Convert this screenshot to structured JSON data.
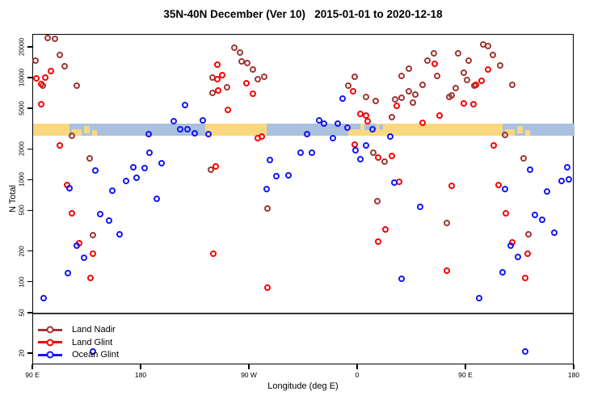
{
  "title": "35N-40N December (Ver 10)   2015-01-01 to 2020-12-18",
  "chart_data": {
    "type": "scatter",
    "title": "35N-40N December (Ver 10)   2015-01-01 to 2020-12-18",
    "xlabel": "Longitude (deg E)",
    "ylabel": "N Total",
    "x_axis": {
      "range": [
        90,
        540
      ],
      "ticks": [
        {
          "lon": 90,
          "label": "90 E"
        },
        {
          "lon": 180,
          "label": "180"
        },
        {
          "lon": 270,
          "label": "90 W"
        },
        {
          "lon": 360,
          "label": "0"
        },
        {
          "lon": 450,
          "label": "90 E"
        },
        {
          "lon": 540,
          "label": "180"
        }
      ]
    },
    "y_axis": {
      "scale": "log",
      "range": [
        15,
        28000
      ],
      "ticks": [
        20000,
        10000,
        5000,
        2000,
        1000,
        500,
        200,
        100,
        50,
        20
      ]
    },
    "legend": {
      "position": "bottom-left",
      "entries": [
        {
          "label": "Land Nadir",
          "color": "#A13531"
        },
        {
          "label": "Land Glint",
          "color": "#FA0000"
        },
        {
          "label": "Ocean Glint",
          "color": "#1414FA"
        }
      ]
    },
    "map_strip": {
      "description": "land/ocean strip for 35N-40N at N~3000",
      "center_value": 3000,
      "land_color": "#FAD880",
      "ocean_color": "#A9C1DE",
      "segments": [
        {
          "from": 90,
          "to": 120,
          "type": "land"
        },
        {
          "from": 120,
          "to": 146,
          "type": "mixed_japan"
        },
        {
          "from": 146,
          "to": 233,
          "type": "ocean"
        },
        {
          "from": 233,
          "to": 284,
          "type": "land"
        },
        {
          "from": 284,
          "to": 352,
          "type": "ocean"
        },
        {
          "from": 352,
          "to": 382,
          "type": "mixed_med"
        },
        {
          "from": 382,
          "to": 480,
          "type": "land"
        },
        {
          "from": 480,
          "to": 506,
          "type": "mixed_japan"
        },
        {
          "from": 506,
          "to": 540,
          "type": "ocean"
        }
      ]
    },
    "series": [
      {
        "name": "Land Nadir",
        "color": "#A13531",
        "points": [
          [
            102,
            24900
          ],
          [
            108,
            24400
          ],
          [
            112,
            17000
          ],
          [
            92,
            14900
          ],
          [
            116,
            13200
          ],
          [
            98,
            8500
          ],
          [
            126,
            8500
          ],
          [
            122,
            2740
          ],
          [
            137,
            1640
          ],
          [
            140,
            291
          ],
          [
            239,
            10200
          ],
          [
            239,
            7200
          ],
          [
            238,
            1270
          ],
          [
            257,
            20000
          ],
          [
            262,
            17900
          ],
          [
            263,
            14700
          ],
          [
            268,
            14200
          ],
          [
            273,
            12200
          ],
          [
            277,
            9800
          ],
          [
            282,
            10400
          ],
          [
            251,
            8200
          ],
          [
            357,
            10400
          ],
          [
            352,
            8500
          ],
          [
            367,
            6600
          ],
          [
            375,
            6000
          ],
          [
            391,
            6200
          ],
          [
            388,
            4200
          ],
          [
            373,
            1870
          ],
          [
            382,
            1530
          ],
          [
            376,
            630
          ],
          [
            285,
            530
          ],
          [
            464,
            21500
          ],
          [
            468,
            20700
          ],
          [
            423,
            17600
          ],
          [
            472,
            17000
          ],
          [
            443,
            17600
          ],
          [
            452,
            14900
          ],
          [
            418,
            14900
          ],
          [
            402,
            12400
          ],
          [
            478,
            13400
          ],
          [
            396,
            10600
          ],
          [
            426,
            10600
          ],
          [
            414,
            8650
          ],
          [
            448,
            11400
          ],
          [
            488,
            8650
          ],
          [
            451,
            9640
          ],
          [
            457,
            8500
          ],
          [
            402,
            7470
          ],
          [
            396,
            6460
          ],
          [
            441,
            8040
          ],
          [
            438,
            6820
          ],
          [
            408,
            6950
          ],
          [
            406,
            5790
          ],
          [
            436,
            6580
          ],
          [
            482,
            2790
          ],
          [
            498,
            1640
          ],
          [
            434,
            383
          ],
          [
            502,
            296
          ]
        ]
      },
      {
        "name": "Land Glint",
        "color": "#FA0000",
        "points": [
          [
            105,
            11800
          ],
          [
            100,
            10200
          ],
          [
            93,
            10000
          ],
          [
            97,
            8800
          ],
          [
            97,
            5600
          ],
          [
            112,
            2200
          ],
          [
            118,
            900
          ],
          [
            122,
            476
          ],
          [
            128,
            243
          ],
          [
            140,
            191
          ],
          [
            138,
            111
          ],
          [
            243,
            13600
          ],
          [
            247,
            10800
          ],
          [
            243,
            9800
          ],
          [
            244,
            7600
          ],
          [
            252,
            4900
          ],
          [
            273,
            7100
          ],
          [
            267,
            9000
          ],
          [
            280,
            2690
          ],
          [
            277,
            2600
          ],
          [
            242,
            1370
          ],
          [
            240,
            191
          ],
          [
            285,
            89
          ],
          [
            356,
            7470
          ],
          [
            362,
            4490
          ],
          [
            367,
            4330
          ],
          [
            368,
            3800
          ],
          [
            357,
            2240
          ],
          [
            377,
            1675
          ],
          [
            388,
            1740
          ],
          [
            392,
            5380
          ],
          [
            394,
            970
          ],
          [
            383,
            331
          ],
          [
            377,
            252
          ],
          [
            424,
            13900
          ],
          [
            468,
            12200
          ],
          [
            463,
            9470
          ],
          [
            458,
            8650
          ],
          [
            448,
            5690
          ],
          [
            456,
            5580
          ],
          [
            428,
            4330
          ],
          [
            414,
            3670
          ],
          [
            473,
            2200
          ],
          [
            438,
            885
          ],
          [
            477,
            900
          ],
          [
            483,
            476
          ],
          [
            488,
            247
          ],
          [
            501,
            191
          ],
          [
            434,
            131
          ],
          [
            499,
            111
          ]
        ]
      },
      {
        "name": "Ocean Glint",
        "color": "#1414FA",
        "points": [
          [
            216,
            5480
          ],
          [
            207,
            3800
          ],
          [
            231,
            3870
          ],
          [
            212,
            3170
          ],
          [
            218,
            3170
          ],
          [
            224,
            2900
          ],
          [
            236,
            2840
          ],
          [
            186,
            2840
          ],
          [
            187,
            1870
          ],
          [
            183,
            1320
          ],
          [
            197,
            1475
          ],
          [
            173,
            1350
          ],
          [
            167,
            990
          ],
          [
            176,
            1060
          ],
          [
            156,
            793
          ],
          [
            142,
            1250
          ],
          [
            120,
            838
          ],
          [
            193,
            660
          ],
          [
            146,
            468
          ],
          [
            153,
            405
          ],
          [
            162,
            296
          ],
          [
            126,
            230
          ],
          [
            132,
            175
          ],
          [
            119,
            124
          ],
          [
            99,
            70
          ],
          [
            140,
            21
          ],
          [
            347,
            6340
          ],
          [
            328,
            3870
          ],
          [
            332,
            3610
          ],
          [
            343,
            3610
          ],
          [
            351,
            3290
          ],
          [
            372,
            3170
          ],
          [
            387,
            2690
          ],
          [
            318,
            2840
          ],
          [
            339,
            2600
          ],
          [
            358,
            1980
          ],
          [
            367,
            2200
          ],
          [
            362,
            1615
          ],
          [
            312,
            1870
          ],
          [
            322,
            1870
          ],
          [
            287,
            1590
          ],
          [
            292,
            1100
          ],
          [
            302,
            1120
          ],
          [
            284,
            822
          ],
          [
            390,
            953
          ],
          [
            534,
            1350
          ],
          [
            503,
            1270
          ],
          [
            529,
            990
          ],
          [
            535,
            1020
          ],
          [
            482,
            822
          ],
          [
            517,
            778
          ],
          [
            412,
            551
          ],
          [
            507,
            459
          ],
          [
            513,
            412
          ],
          [
            523,
            308
          ],
          [
            487,
            230
          ],
          [
            493,
            178
          ],
          [
            480,
            126
          ],
          [
            396,
            109
          ],
          [
            461,
            70
          ],
          [
            499,
            21
          ]
        ]
      }
    ],
    "annotations": {
      "divider_value": 50,
      "divider_note": "horizontal line across plot above legend"
    }
  }
}
